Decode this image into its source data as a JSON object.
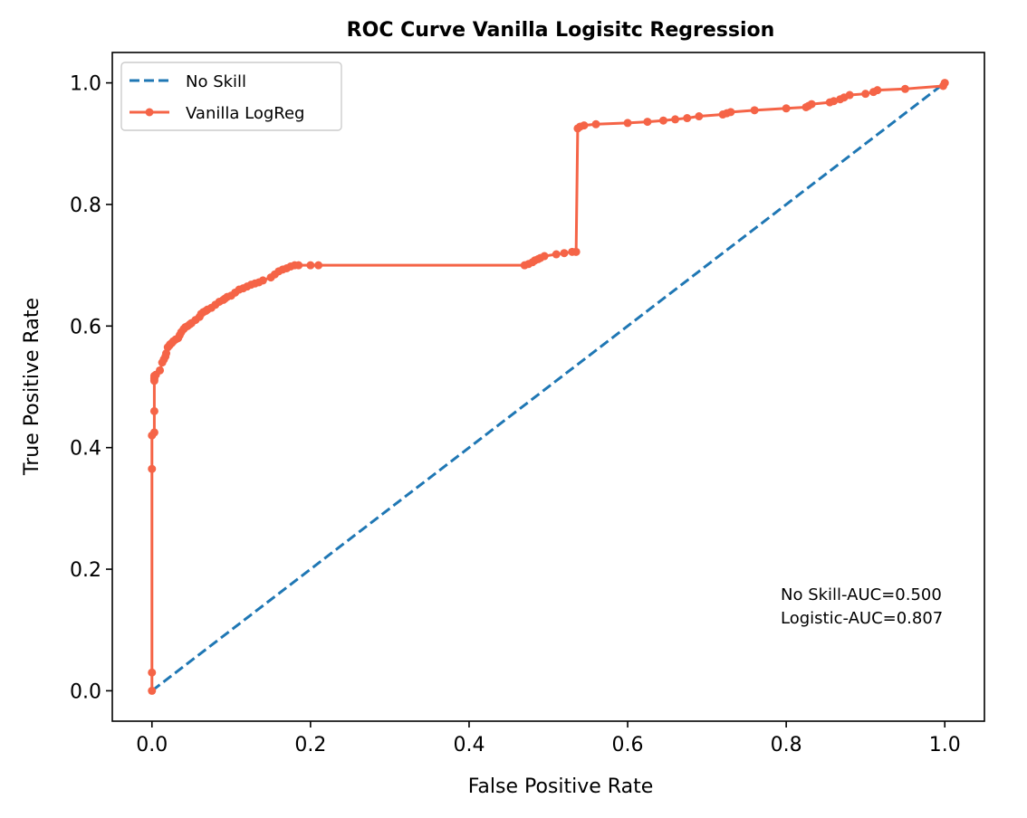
{
  "chart_data": {
    "type": "line",
    "title": "ROC Curve Vanilla Logisitc Regression",
    "xlabel": "False Positive Rate",
    "ylabel": "True Positive Rate",
    "xlim": [
      -0.05,
      1.05
    ],
    "ylim": [
      -0.05,
      1.05
    ],
    "xticks": [
      0.0,
      0.2,
      0.4,
      0.6,
      0.8,
      1.0
    ],
    "yticks": [
      0.0,
      0.2,
      0.4,
      0.6,
      0.8,
      1.0
    ],
    "xtick_labels": [
      "0.0",
      "0.2",
      "0.4",
      "0.6",
      "0.8",
      "1.0"
    ],
    "ytick_labels": [
      "0.0",
      "0.2",
      "0.4",
      "0.6",
      "0.8",
      "1.0"
    ],
    "grid": false,
    "legend_position": "upper left",
    "series": [
      {
        "name": "No Skill",
        "style": "dashed",
        "color": "#1f77b4",
        "x": [
          0,
          1
        ],
        "y": [
          0,
          1
        ]
      },
      {
        "name": "Vanilla LogReg",
        "style": "solid-with-markers",
        "color": "#f56447",
        "x": [
          0.0,
          0.0,
          0.0,
          0.0,
          0.003,
          0.003,
          0.003,
          0.003,
          0.003,
          0.003,
          0.005,
          0.01,
          0.013,
          0.015,
          0.017,
          0.018,
          0.02,
          0.022,
          0.023,
          0.025,
          0.027,
          0.03,
          0.033,
          0.035,
          0.037,
          0.04,
          0.042,
          0.045,
          0.048,
          0.05,
          0.055,
          0.06,
          0.062,
          0.065,
          0.068,
          0.07,
          0.075,
          0.08,
          0.085,
          0.09,
          0.092,
          0.095,
          0.1,
          0.105,
          0.11,
          0.115,
          0.12,
          0.125,
          0.13,
          0.135,
          0.14,
          0.15,
          0.155,
          0.16,
          0.165,
          0.17,
          0.175,
          0.18,
          0.185,
          0.2,
          0.21,
          0.47,
          0.475,
          0.48,
          0.483,
          0.487,
          0.49,
          0.495,
          0.51,
          0.52,
          0.53,
          0.535,
          0.537,
          0.54,
          0.545,
          0.56,
          0.6,
          0.625,
          0.645,
          0.66,
          0.675,
          0.69,
          0.72,
          0.725,
          0.73,
          0.76,
          0.8,
          0.825,
          0.828,
          0.832,
          0.855,
          0.86,
          0.868,
          0.873,
          0.88,
          0.9,
          0.91,
          0.915,
          0.95,
          0.998,
          1.0
        ],
        "y": [
          0.0,
          0.03,
          0.365,
          0.42,
          0.425,
          0.46,
          0.51,
          0.513,
          0.515,
          0.518,
          0.52,
          0.527,
          0.54,
          0.545,
          0.55,
          0.555,
          0.565,
          0.568,
          0.57,
          0.572,
          0.575,
          0.578,
          0.58,
          0.585,
          0.59,
          0.595,
          0.598,
          0.6,
          0.603,
          0.605,
          0.61,
          0.615,
          0.62,
          0.623,
          0.625,
          0.627,
          0.63,
          0.635,
          0.64,
          0.643,
          0.645,
          0.648,
          0.65,
          0.655,
          0.66,
          0.662,
          0.665,
          0.668,
          0.67,
          0.672,
          0.675,
          0.68,
          0.685,
          0.69,
          0.693,
          0.695,
          0.698,
          0.7,
          0.7,
          0.7,
          0.7,
          0.7,
          0.702,
          0.705,
          0.708,
          0.71,
          0.712,
          0.715,
          0.718,
          0.72,
          0.722,
          0.722,
          0.925,
          0.928,
          0.93,
          0.932,
          0.934,
          0.936,
          0.938,
          0.94,
          0.942,
          0.945,
          0.948,
          0.95,
          0.952,
          0.955,
          0.958,
          0.96,
          0.962,
          0.965,
          0.968,
          0.97,
          0.973,
          0.976,
          0.98,
          0.982,
          0.985,
          0.988,
          0.99,
          0.995,
          1.0
        ]
      }
    ],
    "annotations": [
      "No Skill-AUC=0.500",
      "Logistic-AUC=0.807"
    ]
  }
}
